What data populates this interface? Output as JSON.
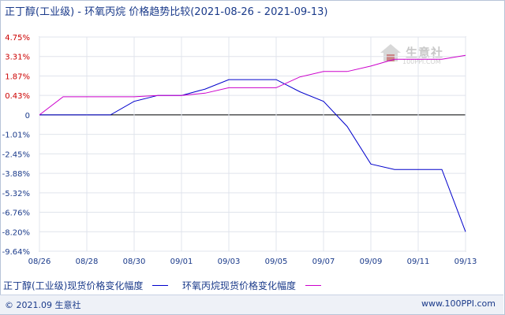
{
  "title": {
    "main": "正丁醇(工业级) - 环氧丙烷 价格趋势比较",
    "range": "(2021-08-26 - 2021-09-13)"
  },
  "watermark": {
    "text": "生意社",
    "url": "100PPI.COM"
  },
  "footer": {
    "left": "© 2021.09 生意社",
    "right": "www.100PPI.com"
  },
  "legend": {
    "series1": "正丁醇(工业级)现货价格变化幅度",
    "series2": "环氧丙烷现货价格变化幅度"
  },
  "colors": {
    "series1": "#0000cc",
    "series2": "#cc00cc",
    "negative_tick": "#1a3a8a",
    "positive_tick": "#cc0000"
  },
  "chart_data": {
    "type": "line",
    "x_tick_labels": [
      "08/26",
      "08/28",
      "08/30",
      "09/01",
      "09/03",
      "09/05",
      "09/07",
      "09/09",
      "09/11",
      "09/13"
    ],
    "x": [
      "08/26",
      "08/27",
      "08/28",
      "08/29",
      "08/30",
      "08/31",
      "09/01",
      "09/02",
      "09/03",
      "09/04",
      "09/05",
      "09/06",
      "09/07",
      "09/08",
      "09/09",
      "09/10",
      "09/11",
      "09/12",
      "09/13"
    ],
    "y_tick_labels": [
      "4.75%",
      "3.31%",
      "1.87%",
      "0.43%",
      "0",
      "-1.01%",
      "-2.45%",
      "-3.88%",
      "-5.32%",
      "-6.76%",
      "-8.20%",
      "-9.64%"
    ],
    "y_ticks": [
      4.75,
      3.31,
      1.87,
      0.43,
      0,
      -1.01,
      -2.45,
      -3.88,
      -5.32,
      -6.76,
      -8.2,
      -9.64
    ],
    "ylim": [
      -9.64,
      4.75
    ],
    "grid": true,
    "series": [
      {
        "name": "正丁醇(工业级)现货价格变化幅度",
        "color": "#0000cc",
        "values": [
          0,
          0,
          0,
          0,
          0.3,
          0.43,
          0.43,
          0.9,
          1.6,
          1.6,
          1.6,
          0.7,
          0.3,
          -0.6,
          -3.2,
          -3.6,
          -3.6,
          -3.6,
          -8.2
        ]
      },
      {
        "name": "环氧丙烷现货价格变化幅度",
        "color": "#cc00cc",
        "values": [
          0,
          0.4,
          0.4,
          0.4,
          0.4,
          0.43,
          0.43,
          0.6,
          1.0,
          1.0,
          1.0,
          1.8,
          2.2,
          2.2,
          2.6,
          3.1,
          3.1,
          3.1,
          3.4
        ]
      }
    ]
  }
}
